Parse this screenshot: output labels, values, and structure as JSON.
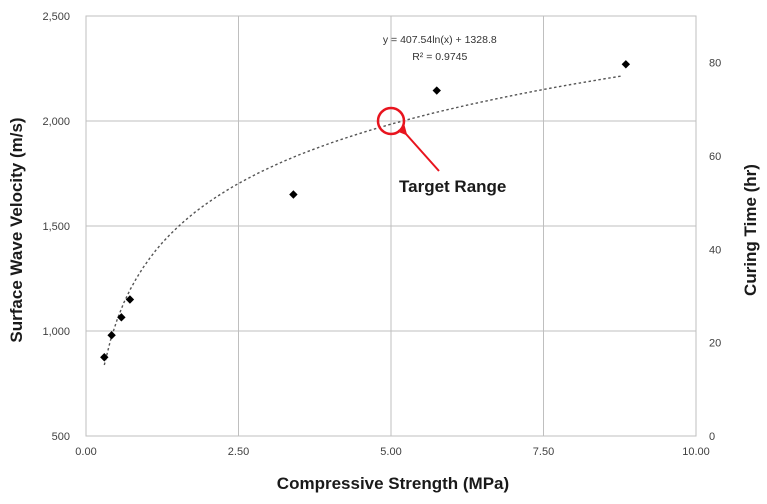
{
  "chart_data": {
    "type": "scatter",
    "xlabel": "Compressive Strength (MPa)",
    "ylabel": "Surface Wave Velocity (m/s)",
    "y2label": "Curing Time (hr)",
    "xlim": [
      0,
      10
    ],
    "ylim": [
      500,
      2500
    ],
    "y2lim": [
      0,
      90
    ],
    "xticks": [
      "0.00",
      "2.50",
      "5.00",
      "7.50",
      "10.00"
    ],
    "yticks": [
      "500",
      "1,000",
      "1,500",
      "2,000",
      "2,500"
    ],
    "y2ticks": [
      "0",
      "20",
      "40",
      "60",
      "80"
    ],
    "grid": true,
    "series": [
      {
        "marker": "diamond",
        "color": "#000000",
        "x": [
          0.3,
          0.42,
          0.58,
          0.72,
          3.4,
          5.75,
          8.85
        ],
        "y": [
          875,
          980,
          1065,
          1150,
          1650,
          2145,
          2270
        ]
      }
    ],
    "trendline": {
      "type": "logarithmic",
      "a": 407.54,
      "b": 1328.8,
      "x_range": [
        0.3,
        8.8
      ],
      "style": "dotted",
      "equation": "y = 407.54ln(x) + 1328.8",
      "r2": "R² = 0.9745"
    },
    "annotation": {
      "label": "Target Range",
      "x": 5.0,
      "y": 2000,
      "circle_color": "#e8141e",
      "arrow_color": "#e8141e"
    }
  }
}
